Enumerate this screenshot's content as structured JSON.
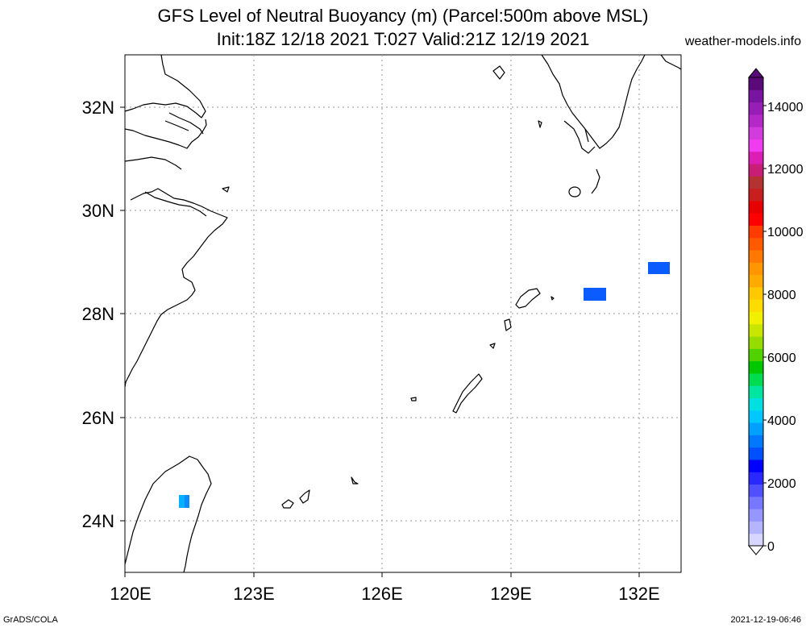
{
  "header": {
    "title_line1": "GFS Level of Neutral Buoyancy (m) (Parcel:500m above MSL)",
    "title_line2": "Init:18Z 12/18 2021 T:027 Valid:21Z 12/19 2021",
    "site": "weather-models.info"
  },
  "footer": {
    "left": "GrADS/COLA",
    "right": "2021-12-19-06:46"
  },
  "map": {
    "lat_labels": [
      "32N",
      "30N",
      "28N",
      "26N",
      "24N"
    ],
    "lon_labels": [
      "120E",
      "123E",
      "126E",
      "129E",
      "132E"
    ]
  },
  "colorbar": {
    "labels": [
      "14000",
      "12000",
      "10000",
      "8000",
      "6000",
      "4000",
      "2000",
      "0"
    ],
    "colors": [
      "#d6d6ff",
      "#b4b4ff",
      "#9696ff",
      "#7878ff",
      "#5050ff",
      "#2828ff",
      "#0000ff",
      "#0050ff",
      "#0078ff",
      "#00a0ff",
      "#00c8ff",
      "#00e0e0",
      "#00e6a0",
      "#00dc50",
      "#00c800",
      "#50d200",
      "#96dc00",
      "#c8e600",
      "#f0f000",
      "#ffdc00",
      "#ffc800",
      "#ffaa00",
      "#ff9600",
      "#ff7800",
      "#ff5a00",
      "#ff3c00",
      "#ff0000",
      "#e60000",
      "#c81e1e",
      "#b43232",
      "#c81e78",
      "#dc1eb4",
      "#f03cf0",
      "#d23cdc",
      "#b428c8",
      "#961eb4",
      "#7814a0",
      "#5a0a78"
    ]
  }
}
